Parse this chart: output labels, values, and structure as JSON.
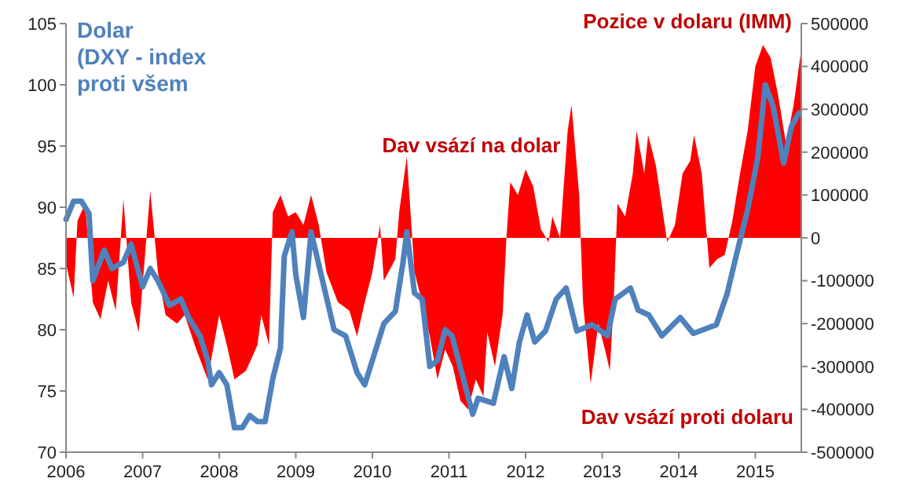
{
  "chart_data": {
    "type": "line",
    "ylabel": "Dolar\n(DXY - index\nproti všem",
    "y2label": "Pozice v dolaru (IMM)",
    "annotations": [
      "Dav vsází na dolar",
      "Dav vsází proti dolaru"
    ],
    "xlim": [
      2006,
      2015.6
    ],
    "xticks": [
      2006,
      2007,
      2008,
      2009,
      2010,
      2011,
      2012,
      2013,
      2014,
      2015
    ],
    "ylim": [
      70,
      105
    ],
    "yticks": [
      70,
      75,
      80,
      85,
      90,
      95,
      100,
      105
    ],
    "y2lim": [
      -500000,
      500000
    ],
    "y2ticks": [
      -500000,
      -400000,
      -300000,
      -200000,
      -100000,
      0,
      100000,
      200000,
      300000,
      400000,
      500000
    ],
    "grid": false,
    "series": [
      {
        "type": "area",
        "axis": "y2",
        "color": "#ff0000",
        "x": [
          2006,
          2006.1,
          2006.15,
          2006.25,
          2006.35,
          2006.45,
          2006.55,
          2006.65,
          2006.75,
          2006.85,
          2006.95,
          2007.05,
          2007.1,
          2007.2,
          2007.3,
          2007.45,
          2007.55,
          2007.7,
          2007.85,
          2008,
          2008.1,
          2008.2,
          2008.35,
          2008.5,
          2008.55,
          2008.65,
          2008.7,
          2008.8,
          2008.9,
          2009,
          2009.1,
          2009.2,
          2009.3,
          2009.4,
          2009.55,
          2009.7,
          2009.8,
          2009.9,
          2010,
          2010.1,
          2010.15,
          2010.3,
          2010.35,
          2010.45,
          2010.55,
          2010.65,
          2010.75,
          2010.85,
          2010.95,
          2011.05,
          2011.15,
          2011.25,
          2011.35,
          2011.45,
          2011.5,
          2011.6,
          2011.7,
          2011.75,
          2011.8,
          2011.9,
          2012,
          2012.1,
          2012.2,
          2012.3,
          2012.35,
          2012.45,
          2012.55,
          2012.6,
          2012.7,
          2012.75,
          2012.85,
          2012.95,
          2013.05,
          2013.1,
          2013.15,
          2013.2,
          2013.3,
          2013.4,
          2013.45,
          2013.55,
          2013.6,
          2013.7,
          2013.8,
          2013.85,
          2013.95,
          2014.05,
          2014.15,
          2014.2,
          2014.3,
          2014.4,
          2014.5,
          2014.6,
          2014.7,
          2014.8,
          2014.9,
          2015,
          2015.1,
          2015.2,
          2015.3,
          2015.4,
          2015.5,
          2015.6
        ],
        "values": [
          -60000,
          -140000,
          40000,
          80000,
          -150000,
          -190000,
          -100000,
          -170000,
          90000,
          -150000,
          -220000,
          0,
          110000,
          -80000,
          -180000,
          -200000,
          -180000,
          -260000,
          -330000,
          -180000,
          -250000,
          -330000,
          -310000,
          -250000,
          -180000,
          -250000,
          60000,
          100000,
          50000,
          60000,
          30000,
          100000,
          30000,
          -80000,
          -150000,
          -170000,
          -230000,
          -150000,
          -80000,
          30000,
          -100000,
          -50000,
          60000,
          190000,
          -80000,
          -150000,
          -230000,
          -330000,
          -260000,
          -300000,
          -380000,
          -400000,
          -330000,
          -370000,
          -220000,
          -300000,
          -180000,
          0,
          130000,
          100000,
          160000,
          120000,
          20000,
          -10000,
          50000,
          0,
          250000,
          310000,
          100000,
          -150000,
          -340000,
          -200000,
          -270000,
          -310000,
          -150000,
          80000,
          50000,
          150000,
          250000,
          150000,
          240000,
          170000,
          50000,
          -10000,
          30000,
          150000,
          180000,
          240000,
          150000,
          -70000,
          -50000,
          -40000,
          40000,
          150000,
          250000,
          400000,
          450000,
          420000,
          330000,
          220000,
          310000,
          440000
        ]
      },
      {
        "color": "#4f81bd",
        "x": [
          2006,
          2006.1,
          2006.2,
          2006.3,
          2006.35,
          2006.5,
          2006.6,
          2006.75,
          2006.85,
          2007,
          2007.1,
          2007.2,
          2007.35,
          2007.5,
          2007.6,
          2007.75,
          2007.85,
          2007.9,
          2008,
          2008.1,
          2008.2,
          2008.3,
          2008.4,
          2008.5,
          2008.6,
          2008.7,
          2008.8,
          2008.85,
          2008.95,
          2009,
          2009.1,
          2009.2,
          2009.35,
          2009.5,
          2009.65,
          2009.8,
          2009.9,
          2010,
          2010.15,
          2010.3,
          2010.4,
          2010.45,
          2010.55,
          2010.65,
          2010.75,
          2010.85,
          2010.95,
          2011.04,
          2011.31,
          2011.38,
          2011.58,
          2011.72,
          2011.82,
          2011.92,
          2012.02,
          2012.12,
          2012.26,
          2012.4,
          2012.53,
          2012.67,
          2012.87,
          2013.07,
          2013.17,
          2013.37,
          2013.47,
          2013.61,
          2013.78,
          2014.02,
          2014.19,
          2014.49,
          2014.63,
          2014.76,
          2014.9,
          2015.03,
          2015.13,
          2015.23,
          2015.37,
          2015.47,
          2015.57
        ],
        "values": [
          89,
          90.5,
          90.5,
          89.5,
          84,
          86.5,
          85,
          85.5,
          87,
          83.5,
          85,
          84,
          82,
          82.5,
          81,
          79.5,
          77.5,
          75.5,
          76.5,
          75.5,
          72,
          72,
          73,
          72.5,
          72.5,
          76,
          78.5,
          86,
          88,
          84.5,
          81,
          88,
          84,
          80,
          79.5,
          76.5,
          75.5,
          77.5,
          80.5,
          81.5,
          85.5,
          88,
          83,
          82.5,
          77,
          77.5,
          80,
          79.5,
          73.1,
          74.4,
          74,
          77.8,
          75.2,
          79,
          81.2,
          79,
          79.9,
          82.5,
          83.4,
          79.9,
          80.4,
          79.5,
          82.5,
          83.4,
          81.6,
          81.2,
          79.5,
          81,
          79.7,
          80.4,
          82.9,
          86.3,
          89.8,
          94,
          100,
          98.3,
          93.6,
          96.6,
          97.7
        ]
      }
    ]
  }
}
